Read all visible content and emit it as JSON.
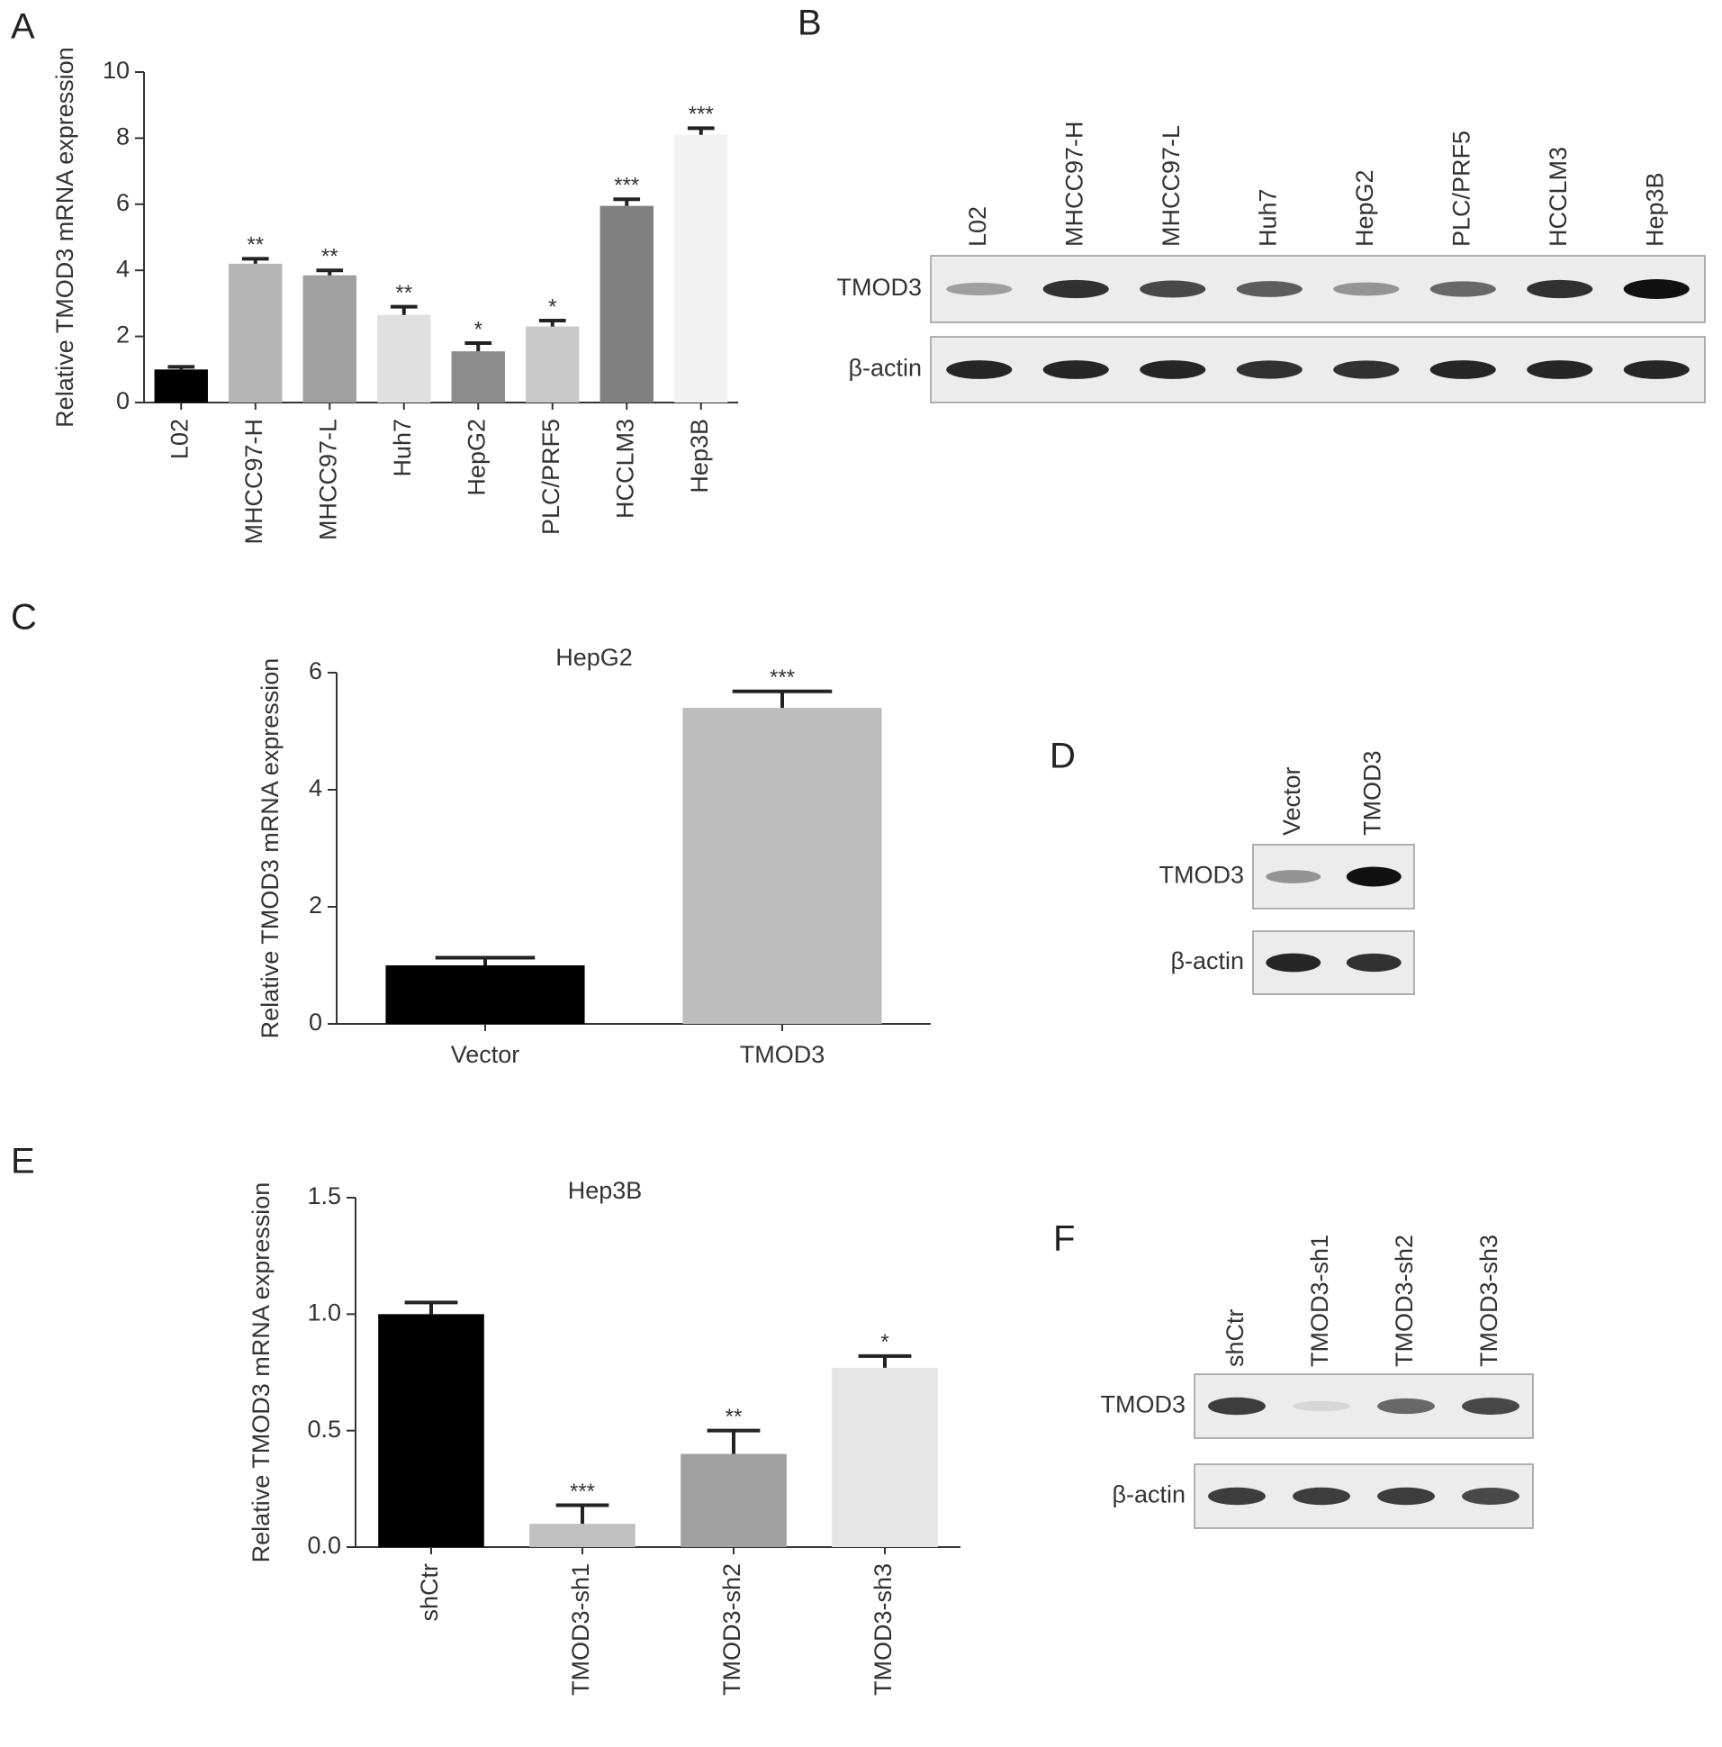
{
  "chart_data": [
    {
      "type": "bar",
      "panel": "A",
      "y_label": "Relative TMOD3 mRNA expression",
      "categories": [
        "L02",
        "MHCC97-H",
        "MHCC97-L",
        "Huh7",
        "HepG2",
        "PLC/PRF5",
        "HCCLM3",
        "Hep3B"
      ],
      "values": [
        1.0,
        4.2,
        3.85,
        2.65,
        1.55,
        2.3,
        5.95,
        8.1
      ],
      "errors": [
        0.08,
        0.15,
        0.15,
        0.25,
        0.25,
        0.18,
        0.2,
        0.2
      ],
      "annotations": [
        null,
        "**",
        "**",
        "**",
        "*",
        "*",
        "***",
        "***"
      ],
      "colors": [
        "#000000",
        "#b5b5b5",
        "#a0a0a0",
        "#e0e0e0",
        "#8c8c8c",
        "#c8c8c8",
        "#808080",
        "#f2f2f2"
      ],
      "ylim": [
        0,
        10
      ],
      "yticks": [
        0,
        2,
        4,
        6,
        8,
        10
      ]
    },
    {
      "type": "bar",
      "panel": "C",
      "title": "HepG2",
      "y_label": "Relative TMOD3 mRNA expression",
      "categories": [
        "Vector",
        "TMOD3"
      ],
      "values": [
        1.0,
        5.4
      ],
      "errors": [
        0.13,
        0.28
      ],
      "annotations": [
        null,
        "***"
      ],
      "colors": [
        "#000000",
        "#bdbdbd"
      ],
      "ylim": [
        0,
        6
      ],
      "yticks": [
        0,
        2,
        4,
        6
      ]
    },
    {
      "type": "bar",
      "panel": "E",
      "title": "Hep3B",
      "y_label": "Relative TMOD3 mRNA expression",
      "categories": [
        "shCtr",
        "TMOD3-sh1",
        "TMOD3-sh2",
        "TMOD3-sh3"
      ],
      "values": [
        1.0,
        0.1,
        0.4,
        0.77
      ],
      "errors": [
        0.05,
        0.08,
        0.1,
        0.05
      ],
      "annotations": [
        null,
        "***",
        "**",
        "*"
      ],
      "colors": [
        "#000000",
        "#c0c0c0",
        "#a0a0a0",
        "#e6e6e6"
      ],
      "ylim": [
        0,
        1.5
      ],
      "yticks": [
        {
          "value": 0,
          "label": "0.0"
        },
        0.5,
        {
          "value": 1,
          "label": "1.0"
        },
        1.5
      ]
    }
  ],
  "blots": [
    {
      "panel": "B",
      "lanes": [
        "L02",
        "MHCC97-H",
        "MHCC97-L",
        "Huh7",
        "HepG2",
        "PLC/PRF5",
        "HCCLM3",
        "Hep3B"
      ],
      "rows": [
        "TMOD3",
        "β-actin"
      ]
    },
    {
      "panel": "D",
      "lanes": [
        "Vector",
        "TMOD3"
      ],
      "rows": [
        "TMOD3",
        "β-actin"
      ]
    },
    {
      "panel": "F",
      "lanes": [
        "shCtr",
        "TMOD3-sh1",
        "TMOD3-sh2",
        "TMOD3-sh3"
      ],
      "rows": [
        "TMOD3",
        "β-actin"
      ]
    }
  ]
}
